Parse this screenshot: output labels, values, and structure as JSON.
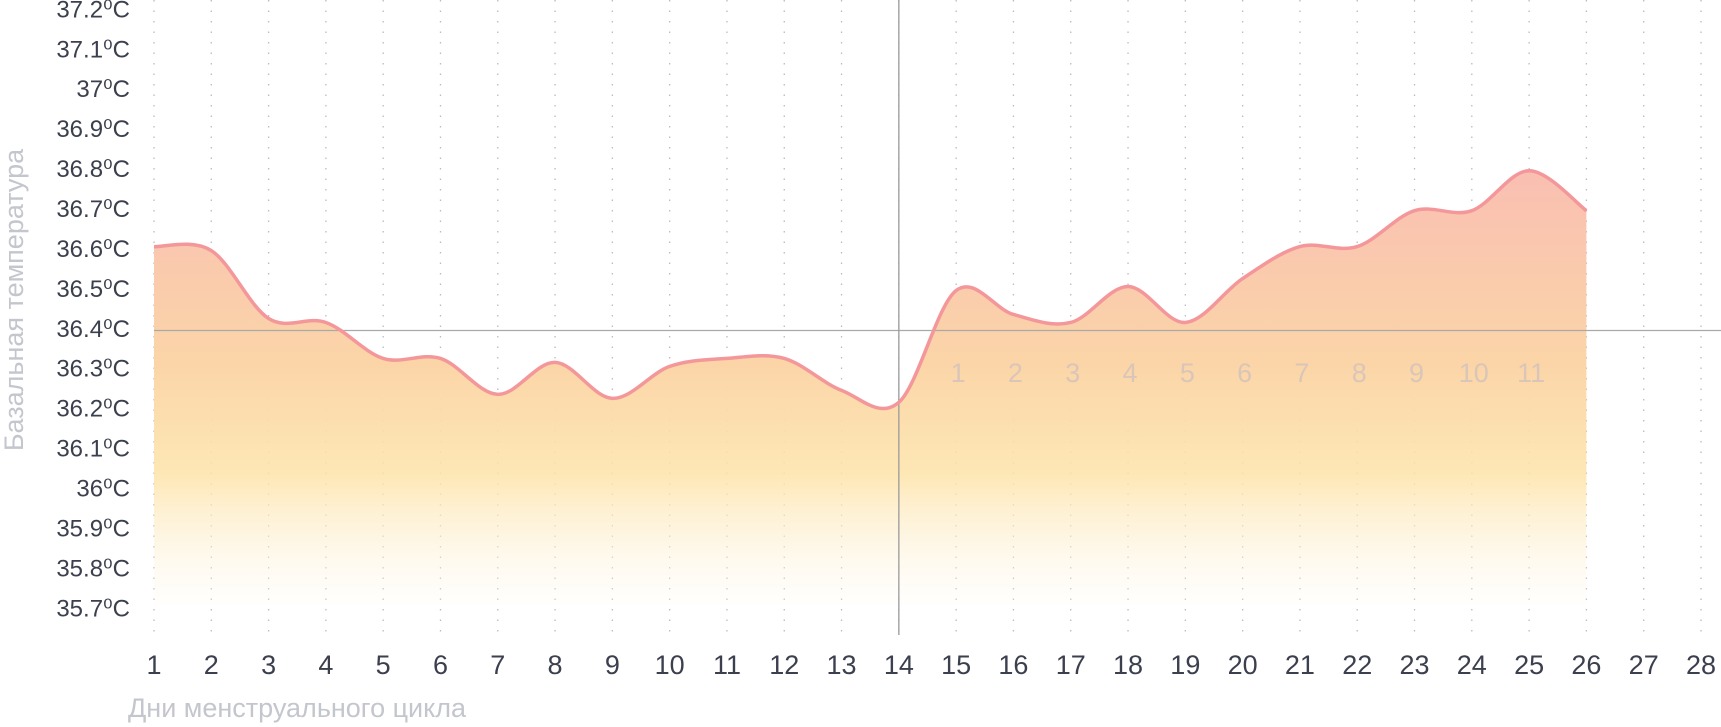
{
  "chart_data": {
    "type": "line",
    "y_label": "Базальная температура",
    "x_label": "Дни менструального цикла",
    "x": [
      1,
      2,
      3,
      4,
      5,
      6,
      7,
      8,
      9,
      10,
      11,
      12,
      13,
      14,
      15,
      16,
      17,
      18,
      19,
      20,
      21,
      22,
      23,
      24,
      25,
      26,
      27,
      28
    ],
    "series": [
      {
        "color": "#f4979a",
        "values": [
          36.61,
          36.6,
          36.43,
          36.42,
          36.33,
          36.33,
          36.24,
          36.32,
          36.23,
          36.31,
          36.33,
          36.33,
          36.25,
          36.22,
          36.5,
          36.44,
          36.42,
          36.51,
          36.42,
          36.53,
          36.61,
          36.61,
          36.7,
          36.7,
          36.8,
          36.7,
          null,
          null
        ]
      }
    ],
    "xlim": [
      1,
      28
    ],
    "xticks": [
      1,
      2,
      3,
      4,
      5,
      6,
      7,
      8,
      9,
      10,
      11,
      12,
      13,
      14,
      15,
      16,
      17,
      18,
      19,
      20,
      21,
      22,
      23,
      24,
      25,
      26,
      27,
      28
    ],
    "ylim": [
      35.7,
      37.2
    ],
    "yticks": [
      {
        "value": 35.7,
        "label": "35.7⁰C"
      },
      {
        "value": 35.8,
        "label": "35.8⁰C"
      },
      {
        "value": 35.9,
        "label": "35.9⁰C"
      },
      {
        "value": 36,
        "label": "36⁰C"
      },
      {
        "value": 36.1,
        "label": "36.1⁰C"
      },
      {
        "value": 36.2,
        "label": "36.2⁰C"
      },
      {
        "value": 36.3,
        "label": "36.3⁰C"
      },
      {
        "value": 36.4,
        "label": "36.4⁰C"
      },
      {
        "value": 36.5,
        "label": "36.5⁰C"
      },
      {
        "value": 36.6,
        "label": "36.6⁰C"
      },
      {
        "value": 36.7,
        "label": "36.7⁰C"
      },
      {
        "value": 36.8,
        "label": "36.8⁰C"
      },
      {
        "value": 36.9,
        "label": "36.9⁰C"
      },
      {
        "value": 37,
        "label": "37⁰C"
      },
      {
        "value": 37.1,
        "label": "37.1⁰C"
      },
      {
        "value": 37.2,
        "label": "37.2⁰C"
      }
    ],
    "reference_y": 36.4,
    "reference_x": 14,
    "phase_days": [
      1,
      2,
      3,
      4,
      5,
      6,
      7,
      8,
      9,
      10,
      11
    ],
    "grid": true
  }
}
